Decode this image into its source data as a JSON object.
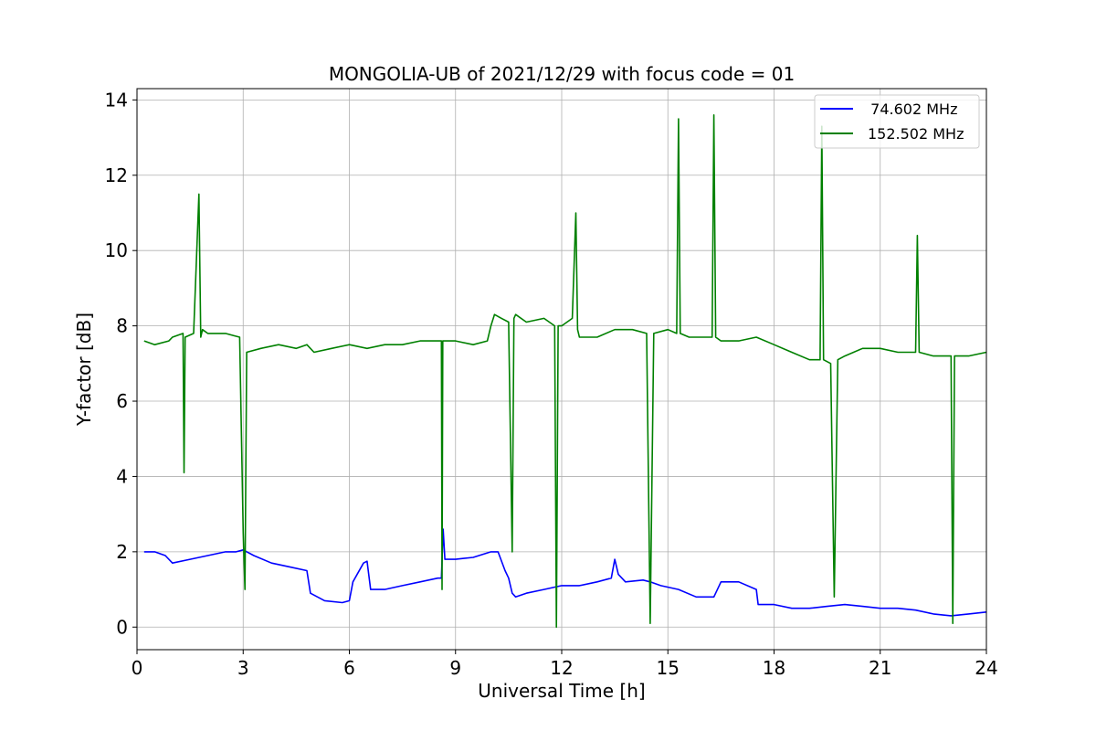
{
  "chart_data": {
    "type": "line",
    "title": "MONGOLIA-UB of 2021/12/29 with focus code = 01",
    "xlabel": "Universal Time [h]",
    "ylabel": "Y-factor [dB]",
    "xlim": [
      0,
      24
    ],
    "ylim": [
      -0.6,
      14.3
    ],
    "xticks": [
      0,
      3,
      6,
      9,
      12,
      15,
      18,
      21,
      24
    ],
    "yticks": [
      0,
      2,
      4,
      6,
      8,
      10,
      12,
      14
    ],
    "grid": true,
    "legend_position": "top-right",
    "series": [
      {
        "name": "  74.602 MHz",
        "color": "#0000ff",
        "x": [
          0.2,
          0.5,
          0.8,
          1.0,
          1.5,
          2.0,
          2.5,
          2.8,
          3.0,
          3.3,
          3.8,
          4.3,
          4.8,
          4.9,
          5.3,
          5.8,
          6.0,
          6.1,
          6.4,
          6.5,
          6.6,
          7.0,
          7.5,
          8.0,
          8.5,
          8.6,
          8.65,
          8.7,
          9.0,
          9.5,
          10.0,
          10.2,
          10.4,
          10.5,
          10.6,
          10.7,
          11.0,
          11.5,
          12.0,
          12.5,
          13.0,
          13.4,
          13.5,
          13.6,
          13.8,
          14.3,
          14.5,
          14.8,
          15.3,
          15.8,
          16.3,
          16.5,
          17.0,
          17.5,
          17.55,
          18.0,
          18.5,
          19.0,
          19.5,
          20.0,
          20.5,
          21.0,
          21.5,
          22.0,
          22.5,
          23.0,
          23.5,
          24.0
        ],
        "y": [
          2.0,
          2.0,
          1.9,
          1.7,
          1.8,
          1.9,
          2.0,
          2.0,
          2.05,
          1.9,
          1.7,
          1.6,
          1.5,
          0.9,
          0.7,
          0.65,
          0.7,
          1.2,
          1.7,
          1.75,
          1.0,
          1.0,
          1.1,
          1.2,
          1.3,
          1.3,
          2.6,
          1.8,
          1.8,
          1.85,
          2.0,
          2.0,
          1.5,
          1.3,
          0.9,
          0.8,
          0.9,
          1.0,
          1.1,
          1.1,
          1.2,
          1.3,
          1.8,
          1.4,
          1.2,
          1.25,
          1.2,
          1.1,
          1.0,
          0.8,
          0.8,
          1.2,
          1.2,
          1.0,
          0.6,
          0.6,
          0.5,
          0.5,
          0.55,
          0.6,
          0.55,
          0.5,
          0.5,
          0.45,
          0.35,
          0.3,
          0.35,
          0.4
        ]
      },
      {
        "name": "152.502 MHz",
        "color": "#008000",
        "x": [
          0.2,
          0.5,
          0.9,
          1.0,
          1.3,
          1.33,
          1.36,
          1.6,
          1.75,
          1.8,
          1.85,
          2.0,
          2.5,
          2.9,
          3.0,
          3.05,
          3.1,
          3.5,
          4.0,
          4.5,
          4.8,
          5.0,
          5.5,
          6.0,
          6.5,
          7.0,
          7.5,
          8.0,
          8.3,
          8.6,
          8.62,
          8.64,
          8.7,
          9.0,
          9.5,
          9.9,
          10.0,
          10.1,
          10.3,
          10.5,
          10.6,
          10.65,
          10.7,
          11.0,
          11.5,
          11.8,
          11.85,
          11.9,
          12.0,
          12.3,
          12.4,
          12.45,
          12.5,
          13.0,
          13.5,
          14.0,
          14.4,
          14.5,
          14.6,
          15.0,
          15.25,
          15.3,
          15.35,
          15.6,
          16.0,
          16.25,
          16.3,
          16.35,
          16.5,
          17.0,
          17.5,
          18.0,
          18.5,
          19.0,
          19.3,
          19.35,
          19.4,
          19.6,
          19.7,
          19.8,
          20.0,
          20.5,
          21.0,
          21.5,
          22.0,
          22.05,
          22.1,
          22.5,
          23.0,
          23.05,
          23.1,
          23.5,
          24.0
        ],
        "y": [
          7.6,
          7.5,
          7.6,
          7.7,
          7.8,
          4.1,
          7.7,
          7.8,
          11.5,
          7.7,
          7.9,
          7.8,
          7.8,
          7.7,
          2.5,
          1.0,
          7.3,
          7.4,
          7.5,
          7.4,
          7.5,
          7.3,
          7.4,
          7.5,
          7.4,
          7.5,
          7.5,
          7.6,
          7.6,
          7.6,
          1.0,
          7.6,
          7.6,
          7.6,
          7.5,
          7.6,
          8.0,
          8.3,
          8.2,
          8.1,
          2.0,
          8.2,
          8.3,
          8.1,
          8.2,
          8.0,
          0.0,
          8.0,
          8.0,
          8.2,
          11.0,
          7.9,
          7.7,
          7.7,
          7.9,
          7.9,
          7.8,
          0.1,
          7.8,
          7.9,
          7.8,
          13.5,
          7.8,
          7.7,
          7.7,
          7.7,
          13.6,
          7.7,
          7.6,
          7.6,
          7.7,
          7.5,
          7.3,
          7.1,
          7.1,
          13.3,
          7.1,
          7.0,
          0.8,
          7.1,
          7.2,
          7.4,
          7.4,
          7.3,
          7.3,
          10.4,
          7.3,
          7.2,
          7.2,
          0.1,
          7.2,
          7.2,
          7.3
        ]
      }
    ]
  }
}
